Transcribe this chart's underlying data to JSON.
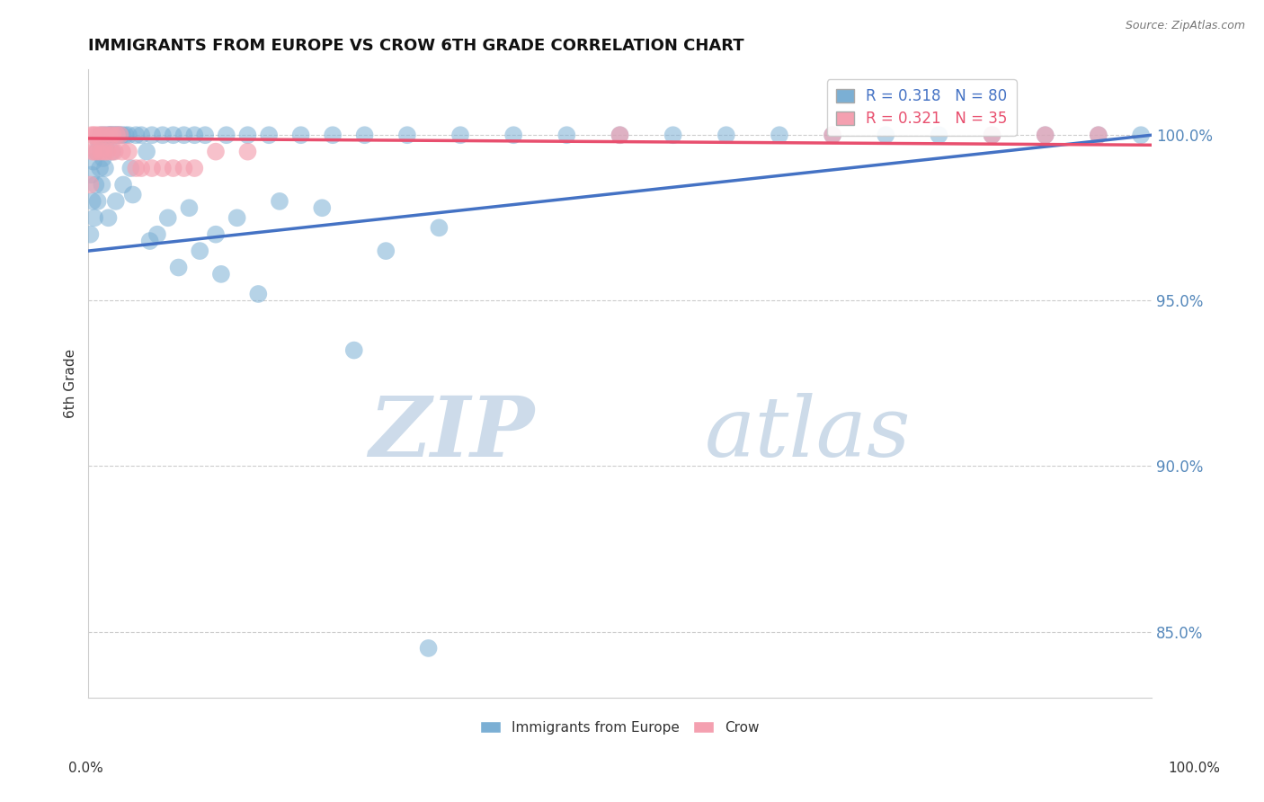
{
  "title": "IMMIGRANTS FROM EUROPE VS CROW 6TH GRADE CORRELATION CHART",
  "source_text": "Source: ZipAtlas.com",
  "ylabel": "6th Grade",
  "y_tick_values": [
    85.0,
    90.0,
    95.0,
    100.0
  ],
  "xlim": [
    0.0,
    100.0
  ],
  "ylim": [
    83.0,
    102.0
  ],
  "blue_R": 0.318,
  "blue_N": 80,
  "pink_R": 0.321,
  "pink_N": 35,
  "blue_color": "#7BAFD4",
  "pink_color": "#F4A0B0",
  "blue_line_color": "#4472C4",
  "pink_line_color": "#E84F6E",
  "legend_label_blue": "Immigrants from Europe",
  "legend_label_pink": "Crow",
  "watermark_zip": "ZIP",
  "watermark_atlas": "atlas",
  "blue_line_x0": 0,
  "blue_line_x1": 100,
  "blue_line_y0": 96.5,
  "blue_line_y1": 100.0,
  "pink_line_x0": 0,
  "pink_line_x1": 100,
  "pink_line_y0": 99.9,
  "pink_line_y1": 99.7,
  "blue_scatter_x": [
    0.3,
    0.5,
    0.8,
    1.0,
    1.2,
    1.5,
    1.8,
    2.0,
    2.2,
    2.5,
    0.4,
    0.7,
    1.1,
    1.4,
    1.7,
    2.1,
    2.4,
    2.8,
    3.0,
    3.5,
    0.6,
    0.9,
    1.3,
    1.6,
    2.3,
    2.7,
    3.2,
    3.8,
    4.5,
    5.0,
    0.2,
    1.9,
    2.6,
    3.3,
    4.0,
    5.5,
    6.0,
    7.0,
    8.0,
    9.0,
    10.0,
    11.0,
    13.0,
    15.0,
    17.0,
    20.0,
    23.0,
    26.0,
    30.0,
    35.0,
    40.0,
    45.0,
    50.0,
    55.0,
    60.0,
    65.0,
    70.0,
    75.0,
    80.0,
    85.0,
    90.0,
    95.0,
    99.0,
    12.0,
    14.0,
    18.0,
    22.0,
    28.0,
    33.0,
    4.2,
    5.8,
    6.5,
    7.5,
    8.5,
    9.5,
    10.5,
    12.5,
    16.0,
    25.0,
    32.0
  ],
  "blue_scatter_y": [
    98.8,
    99.2,
    99.5,
    99.8,
    100.0,
    100.0,
    100.0,
    100.0,
    100.0,
    100.0,
    98.0,
    98.5,
    99.0,
    99.3,
    99.6,
    100.0,
    100.0,
    100.0,
    100.0,
    100.0,
    97.5,
    98.0,
    98.5,
    99.0,
    99.5,
    100.0,
    100.0,
    100.0,
    100.0,
    100.0,
    97.0,
    97.5,
    98.0,
    98.5,
    99.0,
    99.5,
    100.0,
    100.0,
    100.0,
    100.0,
    100.0,
    100.0,
    100.0,
    100.0,
    100.0,
    100.0,
    100.0,
    100.0,
    100.0,
    100.0,
    100.0,
    100.0,
    100.0,
    100.0,
    100.0,
    100.0,
    100.0,
    100.0,
    100.0,
    100.0,
    100.0,
    100.0,
    100.0,
    97.0,
    97.5,
    98.0,
    97.8,
    96.5,
    97.2,
    98.2,
    96.8,
    97.0,
    97.5,
    96.0,
    97.8,
    96.5,
    95.8,
    95.2,
    93.5,
    84.5
  ],
  "pink_scatter_x": [
    0.3,
    0.5,
    0.7,
    1.0,
    1.3,
    1.6,
    2.0,
    2.3,
    2.7,
    3.0,
    0.4,
    0.6,
    0.9,
    1.2,
    1.5,
    1.8,
    2.2,
    2.5,
    3.2,
    3.8,
    0.2,
    4.5,
    5.0,
    6.0,
    7.0,
    8.0,
    9.0,
    10.0,
    12.0,
    15.0,
    50.0,
    70.0,
    85.0,
    90.0,
    95.0
  ],
  "pink_scatter_y": [
    100.0,
    100.0,
    100.0,
    100.0,
    100.0,
    100.0,
    100.0,
    100.0,
    100.0,
    100.0,
    99.5,
    99.5,
    99.5,
    99.5,
    99.5,
    99.5,
    99.5,
    99.5,
    99.5,
    99.5,
    98.5,
    99.0,
    99.0,
    99.0,
    99.0,
    99.0,
    99.0,
    99.0,
    99.5,
    99.5,
    100.0,
    100.0,
    100.0,
    100.0,
    100.0
  ]
}
